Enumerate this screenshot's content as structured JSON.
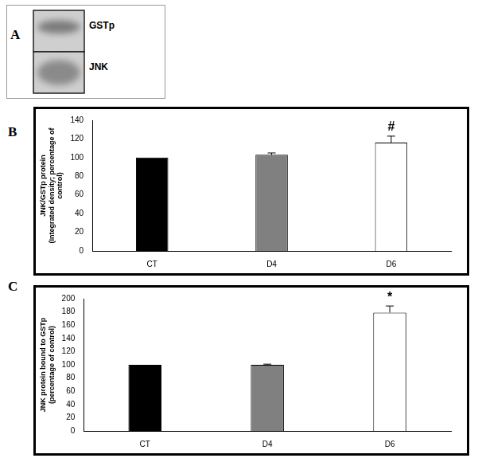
{
  "blot": {
    "label": "A",
    "bands": [
      "GSTp",
      "JNK"
    ]
  },
  "chart_data": [
    {
      "type": "bar",
      "panel": "B",
      "categories": [
        "CT",
        "D4",
        "D6"
      ],
      "values": [
        100,
        103,
        116
      ],
      "errors": [
        0,
        2,
        7
      ],
      "colors": [
        "#000000",
        "#808080",
        "#ffffff"
      ],
      "ylabel": [
        "JNK/GSTp protein",
        "(Integrated density; percentage of",
        "control)"
      ],
      "ylim": [
        0,
        140
      ],
      "yticks": [
        0,
        20,
        40,
        60,
        80,
        100,
        120,
        140
      ],
      "grid": false,
      "annotations": [
        {
          "category": "D6",
          "text": "#"
        }
      ]
    },
    {
      "type": "bar",
      "panel": "C",
      "categories": [
        "CT",
        "D4",
        "D6"
      ],
      "values": [
        100,
        100,
        179
      ],
      "errors": [
        0,
        1,
        10
      ],
      "colors": [
        "#000000",
        "#808080",
        "#ffffff"
      ],
      "ylabel": [
        "JNK protein bound to GSTp",
        "(percentage of control)"
      ],
      "ylim": [
        0,
        200
      ],
      "yticks": [
        0,
        20,
        40,
        60,
        80,
        100,
        120,
        140,
        160,
        180,
        200
      ],
      "grid": false,
      "annotations": [
        {
          "category": "D6",
          "text": "*"
        }
      ]
    }
  ]
}
